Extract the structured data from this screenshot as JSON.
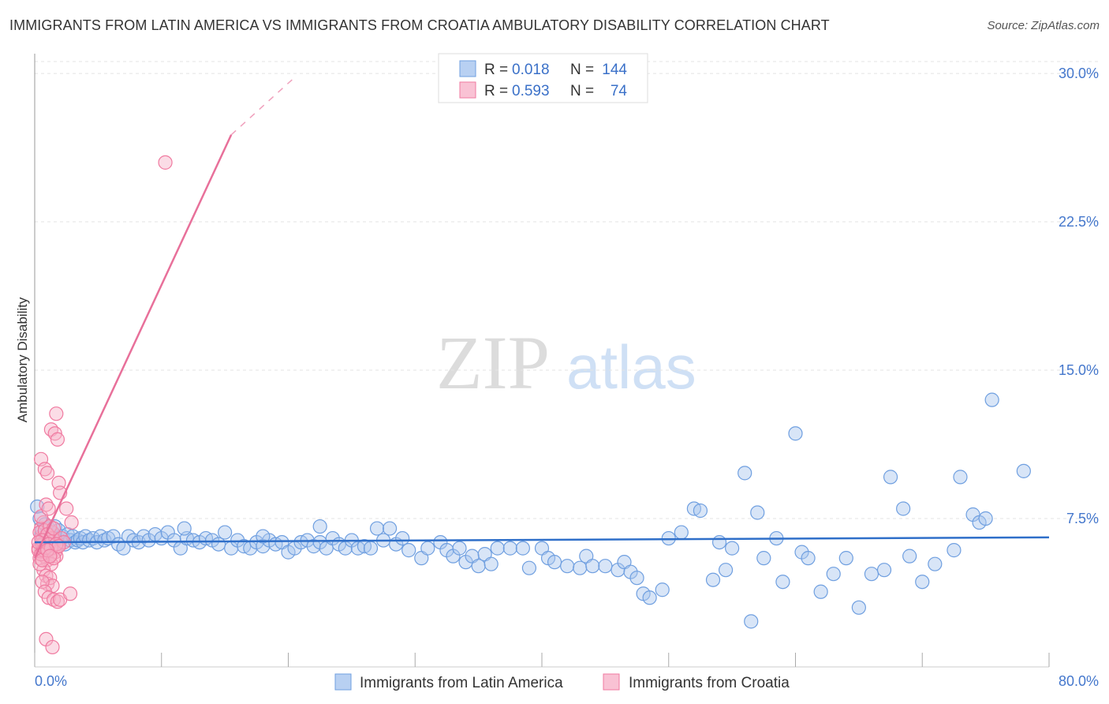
{
  "title": "IMMIGRANTS FROM LATIN AMERICA VS IMMIGRANTS FROM CROATIA AMBULATORY DISABILITY CORRELATION CHART",
  "source": "Source: ZipAtlas.com",
  "watermark": {
    "zip": "ZIP",
    "atlas": "atlas"
  },
  "chart_data": {
    "type": "scatter",
    "title": "IMMIGRANTS FROM LATIN AMERICA VS IMMIGRANTS FROM CROATIA AMBULATORY DISABILITY CORRELATION CHART",
    "xlabel": "",
    "ylabel": "Ambulatory Disability",
    "xlim": [
      0,
      80
    ],
    "ylim": [
      0,
      31
    ],
    "x_tick_labels": [
      "0.0%",
      "80.0%"
    ],
    "y_ticks": [
      7.5,
      15.0,
      22.5,
      30.0
    ],
    "y_tick_labels": [
      "7.5%",
      "15.0%",
      "22.5%",
      "30.0%"
    ],
    "legend": {
      "entries": [
        {
          "r_label": "R =",
          "r_value": "0.018",
          "n_label": "N =",
          "n_value": "144"
        },
        {
          "r_label": "R =",
          "r_value": "0.593",
          "n_label": "N =",
          "n_value": "74"
        }
      ]
    },
    "series": [
      {
        "name": "Immigrants from Latin America",
        "color": "#6f9fe0",
        "trend": {
          "x": [
            0,
            80
          ],
          "y": [
            6.3,
            6.55
          ]
        },
        "points": [
          [
            0.2,
            8.1
          ],
          [
            0.4,
            7.5
          ],
          [
            0.5,
            6.6
          ],
          [
            0.6,
            6.9
          ],
          [
            0.7,
            6.3
          ],
          [
            0.8,
            7.2
          ],
          [
            0.9,
            6.6
          ],
          [
            1.0,
            6.4
          ],
          [
            1.1,
            7.0
          ],
          [
            1.2,
            6.5
          ],
          [
            1.3,
            6.8
          ],
          [
            1.4,
            6.2
          ],
          [
            1.5,
            6.6
          ],
          [
            1.6,
            7.1
          ],
          [
            1.8,
            6.5
          ],
          [
            1.9,
            6.9
          ],
          [
            2.0,
            6.3
          ],
          [
            2.2,
            6.6
          ],
          [
            2.4,
            6.2
          ],
          [
            2.6,
            6.7
          ],
          [
            2.8,
            6.4
          ],
          [
            3.0,
            6.6
          ],
          [
            3.2,
            6.3
          ],
          [
            3.4,
            6.4
          ],
          [
            3.6,
            6.5
          ],
          [
            3.8,
            6.3
          ],
          [
            4.0,
            6.6
          ],
          [
            4.3,
            6.4
          ],
          [
            4.6,
            6.5
          ],
          [
            4.9,
            6.3
          ],
          [
            5.2,
            6.6
          ],
          [
            5.5,
            6.4
          ],
          [
            5.8,
            6.5
          ],
          [
            6.2,
            6.6
          ],
          [
            6.6,
            6.2
          ],
          [
            7.0,
            6.0
          ],
          [
            7.4,
            6.6
          ],
          [
            7.8,
            6.4
          ],
          [
            8.2,
            6.3
          ],
          [
            8.6,
            6.6
          ],
          [
            9.0,
            6.4
          ],
          [
            9.5,
            6.7
          ],
          [
            10.0,
            6.5
          ],
          [
            10.5,
            6.8
          ],
          [
            11.0,
            6.4
          ],
          [
            11.5,
            6.0
          ],
          [
            12.0,
            6.5
          ],
          [
            12.5,
            6.4
          ],
          [
            13.0,
            6.3
          ],
          [
            13.5,
            6.5
          ],
          [
            14.0,
            6.4
          ],
          [
            14.5,
            6.2
          ],
          [
            15.0,
            6.8
          ],
          [
            15.5,
            6.0
          ],
          [
            16.0,
            6.4
          ],
          [
            16.5,
            6.1
          ],
          [
            17.0,
            6.0
          ],
          [
            17.5,
            6.3
          ],
          [
            18.0,
            6.1
          ],
          [
            18.5,
            6.4
          ],
          [
            19.0,
            6.2
          ],
          [
            19.5,
            6.3
          ],
          [
            20.0,
            5.8
          ],
          [
            20.5,
            6.0
          ],
          [
            21.0,
            6.3
          ],
          [
            21.5,
            6.4
          ],
          [
            22.0,
            6.1
          ],
          [
            22.5,
            6.3
          ],
          [
            23.0,
            6.0
          ],
          [
            23.5,
            6.5
          ],
          [
            24.0,
            6.2
          ],
          [
            24.5,
            6.0
          ],
          [
            25.0,
            6.4
          ],
          [
            25.5,
            6.0
          ],
          [
            26.0,
            6.1
          ],
          [
            26.5,
            6.0
          ],
          [
            27.0,
            7.0
          ],
          [
            27.5,
            6.4
          ],
          [
            28.0,
            7.0
          ],
          [
            28.5,
            6.2
          ],
          [
            29.0,
            6.5
          ],
          [
            29.5,
            5.9
          ],
          [
            30.5,
            5.5
          ],
          [
            31.0,
            6.0
          ],
          [
            32.0,
            6.3
          ],
          [
            32.5,
            5.9
          ],
          [
            33.0,
            5.6
          ],
          [
            33.5,
            6.0
          ],
          [
            34.0,
            5.3
          ],
          [
            34.5,
            5.6
          ],
          [
            35.0,
            5.1
          ],
          [
            35.5,
            5.7
          ],
          [
            36.0,
            5.2
          ],
          [
            36.5,
            6.0
          ],
          [
            37.5,
            6.0
          ],
          [
            38.5,
            6.0
          ],
          [
            39.0,
            5.0
          ],
          [
            40.0,
            6.0
          ],
          [
            40.5,
            5.5
          ],
          [
            41.0,
            5.3
          ],
          [
            42.0,
            5.1
          ],
          [
            43.0,
            5.0
          ],
          [
            43.5,
            5.6
          ],
          [
            44.0,
            5.1
          ],
          [
            45.0,
            5.1
          ],
          [
            46.0,
            4.9
          ],
          [
            46.5,
            5.3
          ],
          [
            47.0,
            4.8
          ],
          [
            47.5,
            4.5
          ],
          [
            48.0,
            3.7
          ],
          [
            48.5,
            3.5
          ],
          [
            49.5,
            3.9
          ],
          [
            50.0,
            6.5
          ],
          [
            51.0,
            6.8
          ],
          [
            52.0,
            8.0
          ],
          [
            52.5,
            7.9
          ],
          [
            53.5,
            4.4
          ],
          [
            54.0,
            6.3
          ],
          [
            54.5,
            4.9
          ],
          [
            55.0,
            6.0
          ],
          [
            56.5,
            2.3
          ],
          [
            57.0,
            7.8
          ],
          [
            57.5,
            5.5
          ],
          [
            58.5,
            6.5
          ],
          [
            59.0,
            4.3
          ],
          [
            60.5,
            5.8
          ],
          [
            61.0,
            5.5
          ],
          [
            62.0,
            3.8
          ],
          [
            63.0,
            4.7
          ],
          [
            64.0,
            5.5
          ],
          [
            65.0,
            3.0
          ],
          [
            66.0,
            4.7
          ],
          [
            67.0,
            4.9
          ],
          [
            69.0,
            5.6
          ],
          [
            70.0,
            4.3
          ],
          [
            71.0,
            5.2
          ],
          [
            72.5,
            5.9
          ],
          [
            74.0,
            7.7
          ],
          [
            74.5,
            7.3
          ],
          [
            75.0,
            7.5
          ],
          [
            56.0,
            9.8
          ],
          [
            60.0,
            11.8
          ],
          [
            67.5,
            9.6
          ],
          [
            68.5,
            8.0
          ],
          [
            73.0,
            9.6
          ],
          [
            75.5,
            13.5
          ],
          [
            78.0,
            9.9
          ],
          [
            22.5,
            7.1
          ],
          [
            18.0,
            6.6
          ],
          [
            11.8,
            7.0
          ]
        ]
      },
      {
        "name": "Immigrants from Croatia",
        "color": "#f07aa0",
        "trend": {
          "x": [
            0,
            15.5
          ],
          "y": [
            5.5,
            26.9
          ]
        },
        "trend_dashed": {
          "x": [
            15.5,
            20.5
          ],
          "y": [
            26.9,
            29.8
          ]
        },
        "points": [
          [
            0.3,
            6.0
          ],
          [
            0.4,
            5.5
          ],
          [
            0.5,
            6.5
          ],
          [
            0.5,
            7.0
          ],
          [
            0.6,
            5.8
          ],
          [
            0.7,
            6.2
          ],
          [
            0.7,
            7.3
          ],
          [
            0.8,
            5.6
          ],
          [
            0.9,
            6.1
          ],
          [
            1.0,
            6.6
          ],
          [
            1.1,
            5.9
          ],
          [
            1.2,
            6.3
          ],
          [
            1.3,
            5.7
          ],
          [
            1.4,
            6.8
          ],
          [
            1.5,
            6.0
          ],
          [
            1.6,
            6.4
          ],
          [
            1.7,
            5.6
          ],
          [
            0.3,
            5.9
          ],
          [
            0.4,
            6.8
          ],
          [
            0.5,
            7.6
          ],
          [
            0.6,
            6.2
          ],
          [
            0.8,
            6.9
          ],
          [
            1.0,
            5.4
          ],
          [
            1.2,
            7.1
          ],
          [
            1.4,
            6.5
          ],
          [
            1.6,
            5.8
          ],
          [
            1.8,
            6.1
          ],
          [
            0.9,
            8.2
          ],
          [
            1.1,
            8.0
          ],
          [
            1.3,
            5.2
          ],
          [
            0.7,
            4.9
          ],
          [
            0.9,
            4.6
          ],
          [
            1.0,
            4.2
          ],
          [
            1.2,
            4.5
          ],
          [
            1.4,
            4.1
          ],
          [
            0.6,
            4.3
          ],
          [
            0.8,
            3.8
          ],
          [
            1.1,
            3.5
          ],
          [
            1.5,
            3.4
          ],
          [
            1.8,
            3.3
          ],
          [
            2.0,
            3.4
          ],
          [
            2.8,
            3.7
          ],
          [
            0.9,
            1.4
          ],
          [
            1.4,
            1.0
          ],
          [
            0.5,
            10.5
          ],
          [
            0.8,
            10.0
          ],
          [
            1.0,
            9.8
          ],
          [
            1.3,
            12.0
          ],
          [
            1.6,
            11.8
          ],
          [
            1.8,
            11.5
          ],
          [
            1.7,
            12.8
          ],
          [
            1.9,
            9.3
          ],
          [
            2.0,
            8.8
          ],
          [
            2.5,
            8.0
          ],
          [
            2.9,
            7.3
          ],
          [
            1.0,
            6.7
          ],
          [
            1.5,
            7.0
          ],
          [
            2.1,
            6.5
          ],
          [
            2.3,
            6.3
          ],
          [
            0.4,
            5.2
          ],
          [
            0.5,
            5.7
          ],
          [
            0.6,
            6.4
          ],
          [
            0.7,
            5.9
          ],
          [
            0.8,
            6.0
          ],
          [
            1.1,
            6.2
          ],
          [
            1.3,
            6.0
          ],
          [
            1.5,
            5.5
          ],
          [
            1.7,
            6.2
          ],
          [
            1.9,
            6.1
          ],
          [
            0.3,
            6.3
          ],
          [
            0.6,
            5.4
          ],
          [
            1.0,
            5.9
          ],
          [
            1.2,
            5.6
          ],
          [
            10.3,
            25.5
          ]
        ]
      }
    ]
  }
}
